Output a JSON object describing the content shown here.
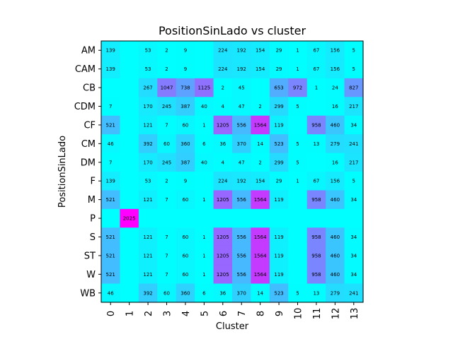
{
  "chart_data": {
    "type": "heatmap",
    "title": "PositionSinLado vs cluster",
    "xlabel": "Cluster",
    "ylabel": "PositionSinLado",
    "x_categories": [
      "0",
      "1",
      "2",
      "3",
      "4",
      "5",
      "6",
      "7",
      "8",
      "9",
      "10",
      "11",
      "12",
      "13"
    ],
    "y_categories": [
      "AM",
      "CAM",
      "CB",
      "CDM",
      "CF",
      "CM",
      "DM",
      "F",
      "M",
      "P",
      "S",
      "ST",
      "W",
      "WB"
    ],
    "colormap": "cool",
    "value_range": [
      0,
      2025
    ],
    "values": [
      [
        139,
        null,
        53,
        2,
        9,
        null,
        224,
        192,
        154,
        29,
        1,
        67,
        156,
        5
      ],
      [
        139,
        null,
        53,
        2,
        9,
        null,
        224,
        192,
        154,
        29,
        1,
        67,
        156,
        5
      ],
      [
        null,
        null,
        267,
        1047,
        738,
        1125,
        2,
        45,
        null,
        653,
        972,
        1,
        24,
        827
      ],
      [
        7,
        null,
        170,
        245,
        387,
        40,
        4,
        47,
        2,
        299,
        5,
        null,
        16,
        217
      ],
      [
        521,
        null,
        121,
        7,
        60,
        1,
        1205,
        556,
        1564,
        119,
        null,
        958,
        460,
        34
      ],
      [
        46,
        null,
        392,
        60,
        360,
        6,
        36,
        370,
        14,
        523,
        5,
        13,
        279,
        241
      ],
      [
        7,
        null,
        170,
        245,
        387,
        40,
        4,
        47,
        2,
        299,
        5,
        null,
        16,
        217
      ],
      [
        139,
        null,
        53,
        2,
        9,
        null,
        224,
        192,
        154,
        29,
        1,
        67,
        156,
        5
      ],
      [
        521,
        null,
        121,
        7,
        60,
        1,
        1205,
        556,
        1564,
        119,
        null,
        958,
        460,
        34
      ],
      [
        null,
        2025,
        null,
        null,
        null,
        null,
        null,
        null,
        null,
        null,
        null,
        null,
        null,
        null
      ],
      [
        521,
        null,
        121,
        7,
        60,
        1,
        1205,
        556,
        1564,
        119,
        null,
        958,
        460,
        34
      ],
      [
        521,
        null,
        121,
        7,
        60,
        1,
        1205,
        556,
        1564,
        119,
        null,
        958,
        460,
        34
      ],
      [
        521,
        null,
        121,
        7,
        60,
        1,
        1205,
        556,
        1564,
        119,
        null,
        958,
        460,
        34
      ],
      [
        46,
        null,
        392,
        60,
        360,
        6,
        36,
        370,
        14,
        523,
        5,
        13,
        279,
        241
      ]
    ]
  }
}
